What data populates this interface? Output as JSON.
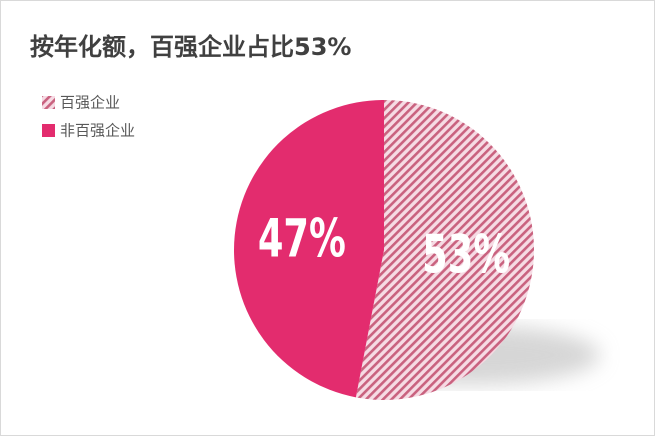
{
  "chart_data": {
    "type": "pie",
    "title": "按年化额，百强企业占比53%",
    "categories": [
      "百强企业",
      "非百强企业"
    ],
    "values": [
      53,
      47
    ],
    "value_labels": [
      "53%",
      "47%"
    ],
    "colors": [
      "hatch",
      "#e32c6e"
    ],
    "legend": "top-left"
  }
}
